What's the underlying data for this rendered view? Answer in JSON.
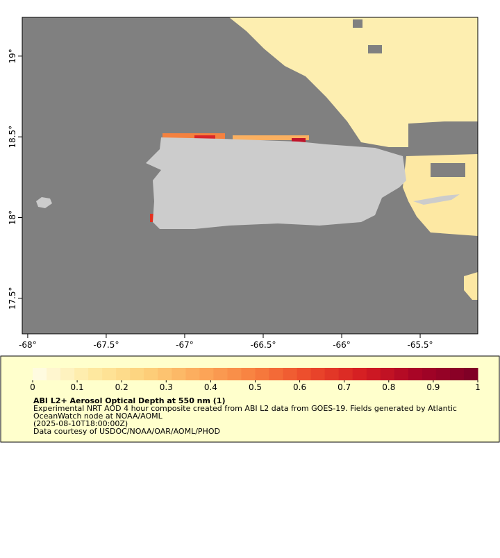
{
  "map": {
    "xlim": [
      -68.035,
      -65.133
    ],
    "ylim": [
      17.28,
      19.24
    ],
    "xticks": [
      {
        "value": -68,
        "label": "-68°"
      },
      {
        "value": -67.5,
        "label": "-67.5°"
      },
      {
        "value": -67,
        "label": "-67°"
      },
      {
        "value": -66.5,
        "label": "-66.5°"
      },
      {
        "value": -66,
        "label": "-66°"
      },
      {
        "value": -65.5,
        "label": "-65.5°"
      }
    ],
    "yticks": [
      {
        "value": 17.5,
        "label": "17.5°"
      },
      {
        "value": 18,
        "label": "18°"
      },
      {
        "value": 18.5,
        "label": "18.5°"
      },
      {
        "value": 19,
        "label": "19°"
      }
    ]
  },
  "colorbar": {
    "lim": [
      0,
      1
    ],
    "ticks": [
      0,
      0.1,
      0.2,
      0.3,
      0.4,
      0.5,
      0.6,
      0.7,
      0.8,
      0.9,
      1
    ],
    "steps": 32,
    "colors": [
      "#fffbe0",
      "#fee9a0",
      "#fdd07a",
      "#fca85a",
      "#f77f3e",
      "#ec4a2b",
      "#d51d22",
      "#a80426",
      "#800026"
    ]
  },
  "legend": {
    "title": "ABI L2+ Aerosol Optical Depth at 550 nm (1)",
    "lines": [
      "Experimental NRT AOD 4 hour composite created from ABI L2 data from GOES-19. Fields generated by Atlantic",
      "OceanWatch node at NOAA/AOML",
      "(2025-08-10T18:00:00Z)",
      "Data courtesy of USDOC/NOAA/OAR/AOML/PHOD"
    ]
  }
}
